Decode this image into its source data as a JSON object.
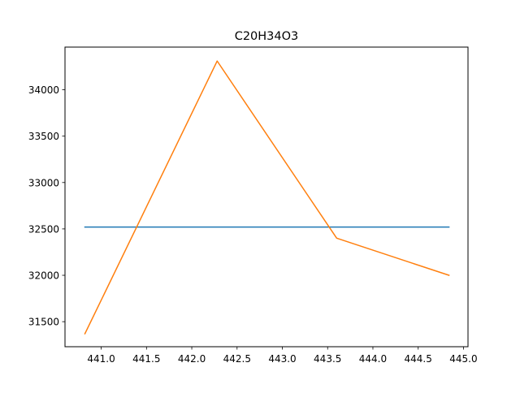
{
  "chart_data": {
    "type": "line",
    "title": "C20H34O3",
    "xlabel": "",
    "ylabel": "",
    "xlim": [
      440.6,
      445.05
    ],
    "ylim": [
      31230,
      34460
    ],
    "xticks": [
      441.0,
      441.5,
      442.0,
      442.5,
      443.0,
      443.5,
      444.0,
      444.5,
      445.0
    ],
    "xtick_labels": [
      "441.0",
      "441.5",
      "442.0",
      "442.5",
      "443.0",
      "443.5",
      "444.0",
      "444.5",
      "445.0"
    ],
    "yticks": [
      31500,
      32000,
      32500,
      33000,
      33500,
      34000
    ],
    "ytick_labels": [
      "31500",
      "32000",
      "32500",
      "33000",
      "33500",
      "34000"
    ],
    "grid": false,
    "legend": "none",
    "series": [
      {
        "color": "#1f77b4",
        "x": [
          440.82,
          444.84
        ],
        "y": [
          32520,
          32520
        ]
      },
      {
        "color": "#ff7f0e",
        "x": [
          440.82,
          442.28,
          443.6,
          444.84
        ],
        "y": [
          31370,
          34310,
          32400,
          32000
        ]
      }
    ]
  }
}
